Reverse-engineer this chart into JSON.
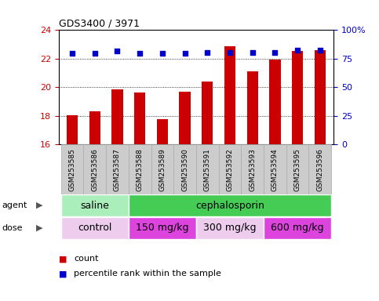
{
  "title": "GDS3400 / 3971",
  "samples": [
    "GSM253585",
    "GSM253586",
    "GSM253587",
    "GSM253588",
    "GSM253589",
    "GSM253590",
    "GSM253591",
    "GSM253592",
    "GSM253593",
    "GSM253594",
    "GSM253595",
    "GSM253596"
  ],
  "bar_values": [
    18.05,
    18.3,
    19.85,
    19.65,
    17.75,
    19.7,
    20.4,
    22.85,
    21.1,
    21.95,
    22.55,
    22.6
  ],
  "scatter_values": [
    22.4,
    22.4,
    22.55,
    22.35,
    22.35,
    22.35,
    22.45,
    22.45,
    22.45,
    22.45,
    22.6,
    22.6
  ],
  "bar_color": "#cc0000",
  "scatter_color": "#0000cc",
  "ylim_left": [
    16,
    24
  ],
  "ylim_right": [
    0,
    100
  ],
  "yticks_left": [
    16,
    18,
    20,
    22,
    24
  ],
  "yticks_right": [
    0,
    25,
    50,
    75,
    100
  ],
  "ytick_labels_right": [
    "0",
    "25",
    "50",
    "75",
    "100%"
  ],
  "grid_values": [
    18,
    20,
    22
  ],
  "agent_groups": [
    {
      "label": "saline",
      "start": 0,
      "end": 3,
      "color": "#aaeebb"
    },
    {
      "label": "cephalosporin",
      "start": 3,
      "end": 12,
      "color": "#44cc55"
    }
  ],
  "dose_groups": [
    {
      "label": "control",
      "start": 0,
      "end": 3,
      "color": "#eeccee"
    },
    {
      "label": "150 mg/kg",
      "start": 3,
      "end": 6,
      "color": "#dd44dd"
    },
    {
      "label": "300 mg/kg",
      "start": 6,
      "end": 9,
      "color": "#eeccee"
    },
    {
      "label": "600 mg/kg",
      "start": 9,
      "end": 12,
      "color": "#dd44dd"
    }
  ],
  "legend_count_color": "#cc0000",
  "legend_pct_color": "#0000cc",
  "tick_label_color_left": "#cc0000",
  "tick_label_color_right": "#0000cc",
  "bar_bottom": 16,
  "tick_bg_color": "#cccccc",
  "tick_bg_edge_color": "#aaaaaa"
}
